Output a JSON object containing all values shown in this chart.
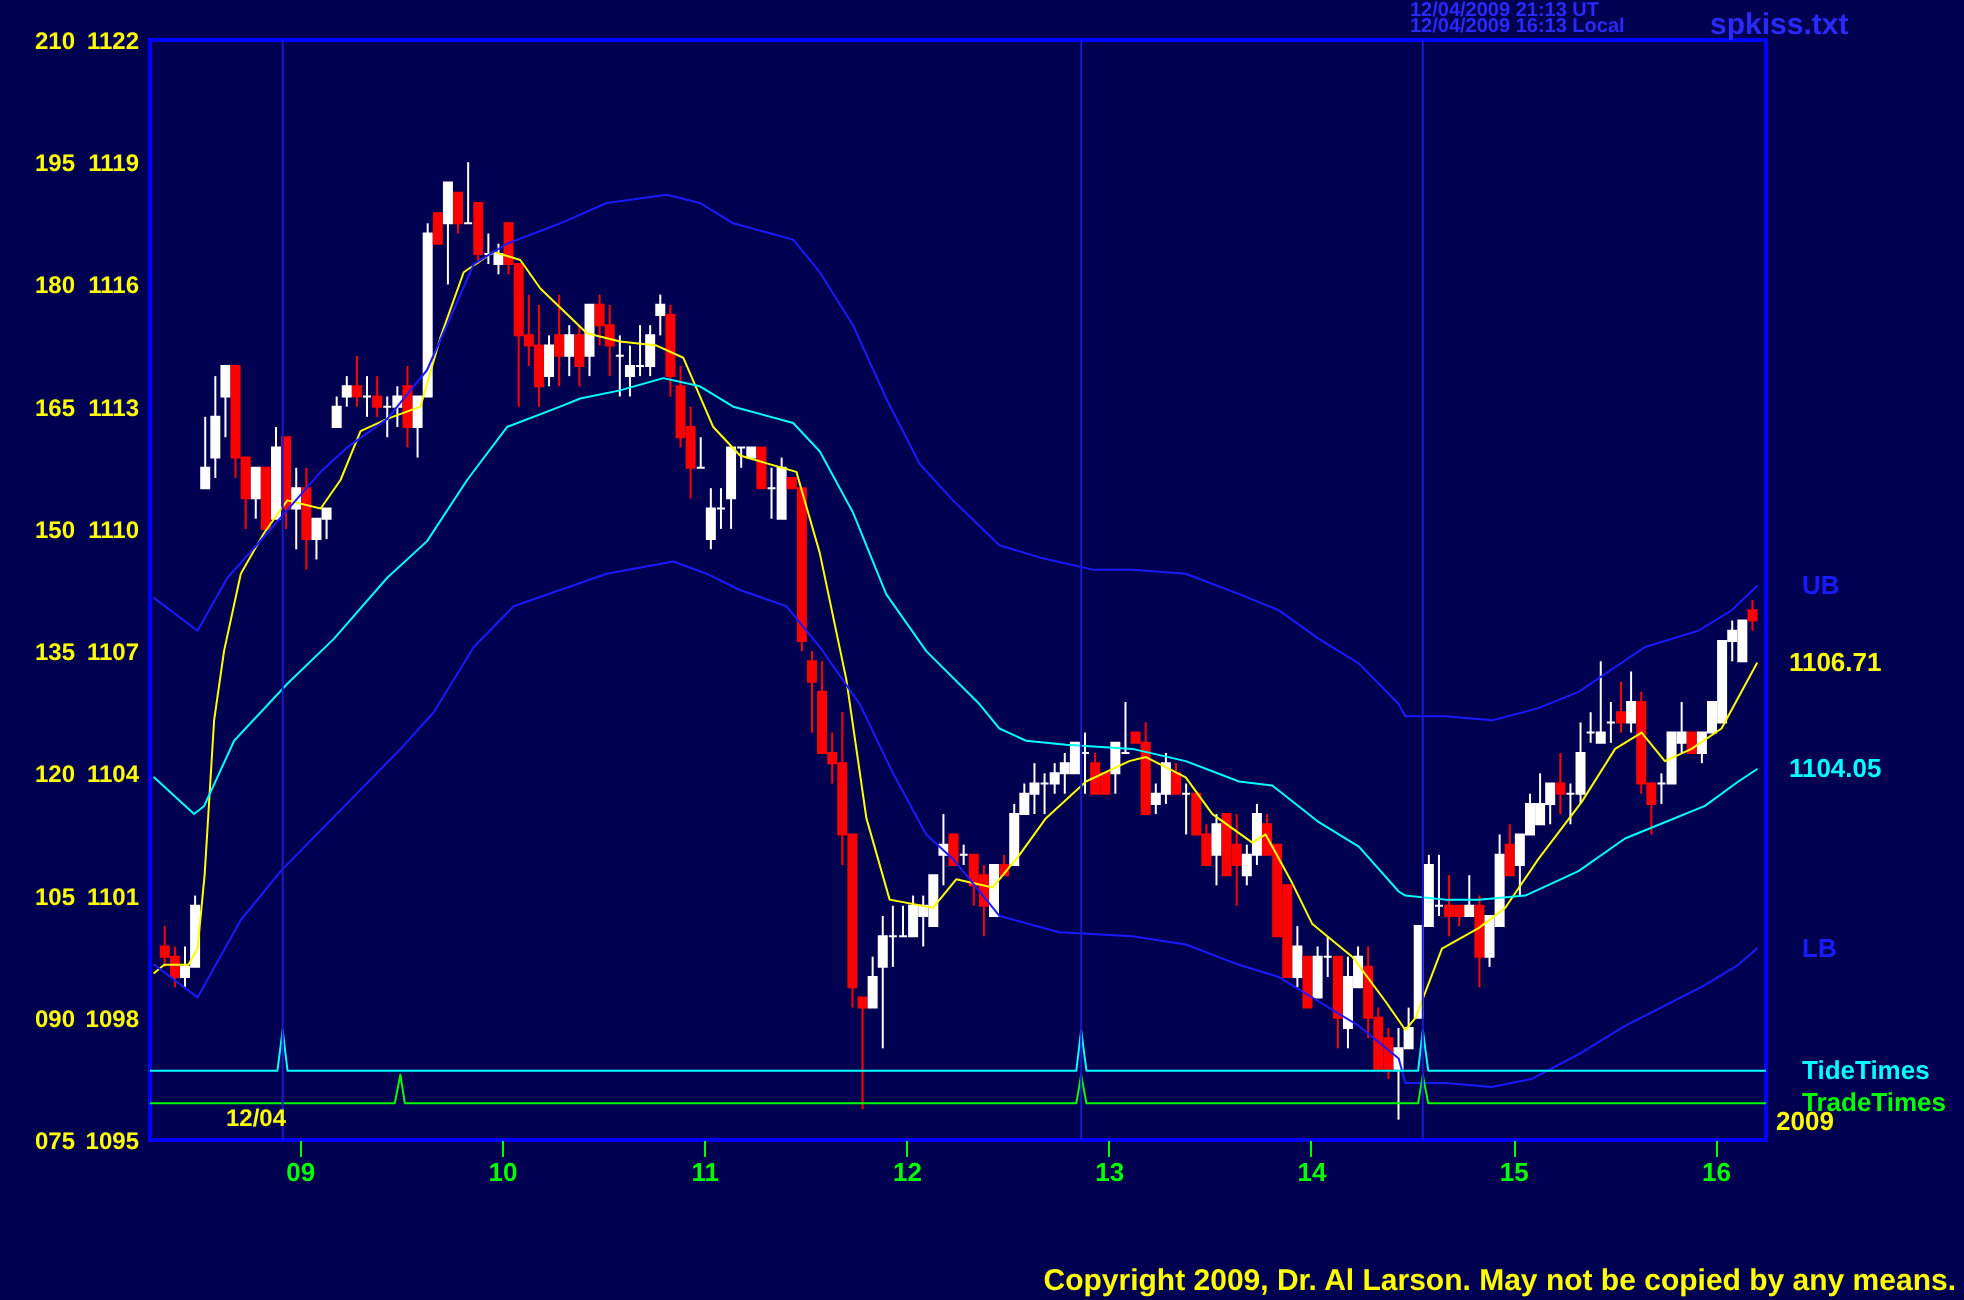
{
  "chart_data": {
    "type": "candlestick",
    "xlim": [
      8.26,
      16.25
    ],
    "xticks": [
      {
        "value": 9,
        "label": "09"
      },
      {
        "value": 10,
        "label": "10"
      },
      {
        "value": 11,
        "label": "11"
      },
      {
        "value": 12,
        "label": "12"
      },
      {
        "value": 13,
        "label": "13"
      },
      {
        "value": 14,
        "label": "14"
      },
      {
        "value": 15,
        "label": "15"
      },
      {
        "value": 16,
        "label": "16"
      }
    ],
    "ylim": [
      1095,
      1122
    ],
    "yticks": [
      1095,
      1098,
      1101,
      1104,
      1107,
      1110,
      1113,
      1116,
      1119,
      1122
    ],
    "y2lim": [
      75,
      210
    ],
    "y2ticks": [
      {
        "value": 75,
        "label": "075"
      },
      {
        "value": 90,
        "label": "090"
      },
      105,
      120,
      135,
      150,
      165,
      180,
      195,
      210
    ],
    "grid": false,
    "marker": "none",
    "line_style": "solid",
    "series": [
      {
        "x": [
          8.333,
          8.383,
          8.433,
          8.483,
          8.533,
          8.583,
          8.633,
          8.683,
          8.733,
          8.783,
          8.833,
          8.883,
          8.933,
          8.983,
          9.033,
          9.083,
          9.133,
          9.183,
          9.233,
          9.283,
          9.333,
          9.383,
          9.433,
          9.483,
          9.533,
          9.583,
          9.633,
          9.683,
          9.733,
          9.783,
          9.833,
          9.883,
          9.933,
          9.983,
          10.033,
          10.083,
          10.133,
          10.183,
          10.233,
          10.283,
          10.333,
          10.383,
          10.433,
          10.483,
          10.533,
          10.583,
          10.633,
          10.683,
          10.733,
          10.783,
          10.833,
          10.883,
          10.933,
          10.983,
          11.033,
          11.083,
          11.133,
          11.183,
          11.233,
          11.283,
          11.333,
          11.383,
          11.433,
          11.483,
          11.533,
          11.583,
          11.633,
          11.683,
          11.733,
          11.783,
          11.833,
          11.883,
          11.933,
          11.983,
          12.033,
          12.083,
          12.133,
          12.183,
          12.233,
          12.283,
          12.333,
          12.383,
          12.433,
          12.483,
          12.533,
          12.583,
          12.633,
          12.683,
          12.733,
          12.783,
          12.833,
          12.883,
          12.933,
          12.983,
          13.033,
          13.083,
          13.133,
          13.183,
          13.233,
          13.283,
          13.333,
          13.383,
          13.433,
          13.483,
          13.533,
          13.583,
          13.633,
          13.683,
          13.733,
          13.783,
          13.833,
          13.883,
          13.933,
          13.983,
          14.033,
          14.083,
          14.133,
          14.183,
          14.233,
          14.283,
          14.333,
          14.383,
          14.433,
          14.483,
          14.533,
          14.583,
          14.633,
          14.683,
          14.733,
          14.783,
          14.833,
          14.883,
          14.933,
          14.983,
          15.033,
          15.083,
          15.133,
          15.183,
          15.233,
          15.283,
          15.333,
          15.383,
          15.433,
          15.483,
          15.533,
          15.583,
          15.633,
          15.683,
          15.733,
          15.783,
          15.833,
          15.883,
          15.933,
          15.983,
          16.033,
          16.083,
          16.133,
          16.183
        ],
        "ohlc": [
          [
            1099.75,
            1100.25,
            1099.25,
            1099.5
          ],
          [
            1099.5,
            1099.75,
            1098.75,
            1099
          ],
          [
            1099,
            1099.75,
            1098.75,
            1099.25
          ],
          [
            1099.25,
            1101,
            1099.25,
            1100.75
          ],
          [
            1111,
            1112.75,
            1111,
            1111.5
          ],
          [
            1111.75,
            1113.75,
            1111.25,
            1112.75
          ],
          [
            1113.25,
            1114,
            1112.25,
            1114
          ],
          [
            1114,
            1114,
            1111.25,
            1111.75
          ],
          [
            1111.75,
            1111.75,
            1110,
            1110.75
          ],
          [
            1110.75,
            1111.5,
            1110.25,
            1111.5
          ],
          [
            1111.5,
            1111.5,
            1110,
            1110
          ],
          [
            1110.25,
            1112.5,
            1110.25,
            1112
          ],
          [
            1112.25,
            1112.25,
            1110,
            1110.5
          ],
          [
            1110.5,
            1111.5,
            1109.5,
            1111
          ],
          [
            1111,
            1111.5,
            1109,
            1109.75
          ],
          [
            1109.75,
            1110.25,
            1109.25,
            1110.25
          ],
          [
            1110.25,
            1110.5,
            1109.75,
            1110.5
          ],
          [
            1112.5,
            1113.25,
            1112.5,
            1113
          ],
          [
            1113.25,
            1113.75,
            1113,
            1113.5
          ],
          [
            1113.5,
            1114.25,
            1113,
            1113.25
          ],
          [
            1113.25,
            1113.75,
            1112.75,
            1113.25
          ],
          [
            1113.25,
            1113.75,
            1112.75,
            1113
          ],
          [
            1113,
            1113.25,
            1112.25,
            1113
          ],
          [
            1113,
            1113.5,
            1112.5,
            1113.25
          ],
          [
            1113.5,
            1114,
            1112,
            1112.5
          ],
          [
            1112.5,
            1113.25,
            1111.75,
            1113.25
          ],
          [
            1113.25,
            1117.5,
            1113.25,
            1117.25
          ],
          [
            1117.75,
            1117.75,
            1117,
            1117
          ],
          [
            1117.5,
            1118.5,
            1116,
            1118.5
          ],
          [
            1118.25,
            1118.25,
            1117.25,
            1117.5
          ],
          [
            1117.5,
            1119,
            1117.5,
            1117.5
          ],
          [
            1118,
            1118,
            1116.5,
            1116.75
          ],
          [
            1116.75,
            1117.25,
            1116.5,
            1116.75
          ],
          [
            1116.5,
            1117,
            1116.25,
            1116.75
          ],
          [
            1117.5,
            1117.5,
            1116.25,
            1116.5
          ],
          [
            1116.5,
            1116.5,
            1113,
            1114.75
          ],
          [
            1114.75,
            1115.75,
            1114,
            1114.5
          ],
          [
            1114.5,
            1115.5,
            1113,
            1113.5
          ],
          [
            1113.75,
            1114.75,
            1113.5,
            1114.5
          ],
          [
            1114.75,
            1115.75,
            1113.5,
            1114.25
          ],
          [
            1114.25,
            1115,
            1113.75,
            1114.75
          ],
          [
            1114.75,
            1115,
            1113.5,
            1114
          ],
          [
            1114.25,
            1115.5,
            1113.75,
            1115.5
          ],
          [
            1115.5,
            1115.75,
            1114.5,
            1115
          ],
          [
            1115,
            1115.5,
            1113.75,
            1114.5
          ],
          [
            1114.25,
            1114.75,
            1113.25,
            1114.25
          ],
          [
            1113.75,
            1114.5,
            1113.25,
            1114
          ],
          [
            1114,
            1115,
            1113.75,
            1114
          ],
          [
            1114,
            1115,
            1113.75,
            1114.75
          ],
          [
            1115.25,
            1115.75,
            1114.75,
            1115.5
          ],
          [
            1115.25,
            1115.5,
            1113.25,
            1113.75
          ],
          [
            1113.5,
            1114,
            1112,
            1112.25
          ],
          [
            1112.5,
            1113,
            1110.75,
            1111.5
          ],
          [
            1111.5,
            1112.25,
            1111.5,
            1111.5
          ],
          [
            1109.75,
            1111,
            1109.5,
            1110.5
          ],
          [
            1110.5,
            1111,
            1110,
            1110.5
          ],
          [
            1110.75,
            1112,
            1110,
            1112
          ],
          [
            1112,
            1112,
            1111.5,
            1112
          ],
          [
            1111.75,
            1112,
            1111.75,
            1112
          ],
          [
            1112,
            1112,
            1111,
            1111
          ],
          [
            1111,
            1111.5,
            1110.25,
            1111
          ],
          [
            1110.25,
            1111.75,
            1110.25,
            1111.5
          ],
          [
            1111.25,
            1111.25,
            1111,
            1111
          ],
          [
            1111,
            1111,
            1107,
            1107.25
          ],
          [
            1106.75,
            1107,
            1105,
            1106.25
          ],
          [
            1106,
            1106.75,
            1104.5,
            1104.5
          ],
          [
            1104.5,
            1105,
            1103.75,
            1104.25
          ],
          [
            1104.25,
            1105.5,
            1101.75,
            1102.5
          ],
          [
            1102.5,
            1102.5,
            1098.25,
            1098.75
          ],
          [
            1098.5,
            1098.5,
            1095.75,
            1098.25
          ],
          [
            1098.25,
            1099.5,
            1098.25,
            1099
          ],
          [
            1099.25,
            1100.5,
            1097.25,
            1100
          ],
          [
            1100,
            1100.75,
            1099.25,
            1100
          ],
          [
            1100,
            1100.75,
            1100,
            1100
          ],
          [
            1100,
            1101,
            1100,
            1100.75
          ],
          [
            1100.5,
            1101,
            1099.75,
            1100.75
          ],
          [
            1100.25,
            1101.5,
            1100.25,
            1101.5
          ],
          [
            1102,
            1103,
            1101.25,
            1102.25
          ],
          [
            1102.5,
            1102.5,
            1101.75,
            1101.75
          ],
          [
            1102,
            1102.25,
            1101.75,
            1102
          ],
          [
            1102,
            1102,
            1100.75,
            1101.25
          ],
          [
            1101.5,
            1101.75,
            1100,
            1100.75
          ],
          [
            1100.5,
            1101.75,
            1100.5,
            1101.75
          ],
          [
            1101.75,
            1102,
            1101.5,
            1101.5
          ],
          [
            1101.75,
            1103.25,
            1101.75,
            1103
          ],
          [
            1103,
            1103.75,
            1103,
            1103.5
          ],
          [
            1103.5,
            1104.25,
            1103,
            1103.75
          ],
          [
            1103.75,
            1104,
            1103,
            1103.75
          ],
          [
            1103.75,
            1104.25,
            1103.5,
            1104
          ],
          [
            1104,
            1104.5,
            1103.5,
            1104.25
          ],
          [
            1104,
            1104.75,
            1104,
            1104.75
          ],
          [
            1104.5,
            1105,
            1103.5,
            1104.5
          ],
          [
            1104.25,
            1104.5,
            1103.5,
            1103.5
          ],
          [
            1104,
            1104,
            1103.5,
            1103.5
          ],
          [
            1104,
            1104.75,
            1103.5,
            1104.75
          ],
          [
            1104.5,
            1105.75,
            1104.5,
            1104.5
          ],
          [
            1105,
            1105,
            1104.75,
            1104.75
          ],
          [
            1104.75,
            1105.25,
            1103,
            1103
          ],
          [
            1103.25,
            1103.75,
            1103,
            1103.5
          ],
          [
            1103.5,
            1104.5,
            1103.25,
            1104.25
          ],
          [
            1104,
            1104.25,
            1103.5,
            1103.5
          ],
          [
            1103.5,
            1103.75,
            1102.5,
            1103.5
          ],
          [
            1103.5,
            1103.5,
            1102.5,
            1102.5
          ],
          [
            1102.5,
            1102.75,
            1101.75,
            1101.75
          ],
          [
            1102,
            1103,
            1101.25,
            1102.75
          ],
          [
            1103,
            1103,
            1101.5,
            1101.5
          ],
          [
            1102.25,
            1103,
            1100.75,
            1101.75
          ],
          [
            1101.5,
            1102.25,
            1101.25,
            1102
          ],
          [
            1102,
            1103.25,
            1101.75,
            1103
          ],
          [
            1102.75,
            1103,
            1102,
            1102
          ],
          [
            1102.25,
            1102.25,
            1100,
            1100
          ],
          [
            1101.25,
            1101.25,
            1099,
            1099
          ],
          [
            1099,
            1100.25,
            1098.75,
            1099.75
          ],
          [
            1099.5,
            1099.5,
            1098.25,
            1098.25
          ],
          [
            1098.5,
            1099.75,
            1098.5,
            1099.5
          ],
          [
            1099.5,
            1100,
            1099,
            1099.5
          ],
          [
            1099.5,
            1099.5,
            1097.25,
            1098
          ],
          [
            1097.75,
            1099.5,
            1097.25,
            1099
          ],
          [
            1098.75,
            1099.75,
            1098.75,
            1099.5
          ],
          [
            1099.25,
            1099.75,
            1097.5,
            1098
          ],
          [
            1098,
            1098.25,
            1096.75,
            1096.75
          ],
          [
            1097.5,
            1097.75,
            1096.5,
            1096.75
          ],
          [
            1096.75,
            1097.75,
            1095.5,
            1097.25
          ],
          [
            1097.25,
            1098.25,
            1097.25,
            1097.75
          ],
          [
            1098,
            1100.25,
            1098,
            1100.25
          ],
          [
            1100.25,
            1102,
            1100.25,
            1101.75
          ],
          [
            1100.75,
            1102,
            1100.5,
            1100.75
          ],
          [
            1100.75,
            1101.5,
            1100,
            1100.5
          ],
          [
            1100.75,
            1100.75,
            1100.25,
            1100.5
          ],
          [
            1100.5,
            1101.5,
            1100.5,
            1100.75
          ],
          [
            1100.75,
            1101,
            1098.75,
            1099.5
          ],
          [
            1099.5,
            1100.5,
            1099.25,
            1100.5
          ],
          [
            1100.25,
            1102.5,
            1100.25,
            1102
          ],
          [
            1102.25,
            1102.75,
            1101.5,
            1101.5
          ],
          [
            1101.75,
            1102.5,
            1101,
            1102.5
          ],
          [
            1102.5,
            1103.5,
            1102.5,
            1103.25
          ],
          [
            1102.75,
            1104,
            1102.75,
            1103.25
          ],
          [
            1103.25,
            1103.75,
            1102.75,
            1103.75
          ],
          [
            1103.75,
            1104.5,
            1103,
            1103.5
          ],
          [
            1103.5,
            1103.75,
            1102.75,
            1103.5
          ],
          [
            1103.5,
            1105.25,
            1103.25,
            1104.5
          ],
          [
            1105,
            1105.5,
            1104.75,
            1105
          ],
          [
            1104.75,
            1106.75,
            1104.75,
            1105
          ],
          [
            1105.25,
            1105.75,
            1104.75,
            1105.25
          ],
          [
            1105.5,
            1106.25,
            1105,
            1105.25
          ],
          [
            1105.25,
            1106.5,
            1105,
            1105.75
          ],
          [
            1105.75,
            1106,
            1103.5,
            1103.75
          ],
          [
            1103.75,
            1103.75,
            1102.5,
            1103.25
          ],
          [
            1103.75,
            1104,
            1103.25,
            1103.75
          ],
          [
            1103.75,
            1105,
            1103.75,
            1105
          ],
          [
            1104.75,
            1105.75,
            1104.5,
            1105
          ],
          [
            1105,
            1105,
            1104.5,
            1104.5
          ],
          [
            1104.5,
            1105,
            1104.25,
            1105
          ],
          [
            1105,
            1105.75,
            1105,
            1105.75
          ],
          [
            1105.25,
            1107.25,
            1105.25,
            1107.25
          ],
          [
            1107.25,
            1107.75,
            1106.75,
            1107.5
          ],
          [
            1106.75,
            1107.75,
            1106.75,
            1107.75
          ],
          [
            1108,
            1108.25,
            1107.5,
            1107.75
          ]
        ],
        "colors": [
          "#ff0000",
          "#ff0000",
          "#ffffff",
          "#ffffff",
          "#ffffff",
          "#ffffff",
          "#ffffff",
          "#ff0000",
          "#ff0000",
          "#ffffff",
          "#ff0000",
          "#ffffff",
          "#ff0000",
          "#ffffff",
          "#ff0000",
          "#ffffff",
          "#ffffff",
          "#ffffff",
          "#ffffff",
          "#ff0000",
          "#ffffff",
          "#ff0000",
          "#ffffff",
          "#ffffff",
          "#ff0000",
          "#ffffff",
          "#ffffff",
          "#ff0000",
          "#ffffff",
          "#ff0000",
          "#ffffff",
          "#ff0000",
          "#ffffff",
          "#ffffff",
          "#ff0000",
          "#ff0000",
          "#ff0000",
          "#ff0000",
          "#ffffff",
          "#ff0000",
          "#ffffff",
          "#ff0000",
          "#ffffff",
          "#ff0000",
          "#ff0000",
          "#ffffff",
          "#ffffff",
          "#ffffff",
          "#ffffff",
          "#ffffff",
          "#ff0000",
          "#ff0000",
          "#ff0000",
          "#ffffff",
          "#ffffff",
          "#ffffff",
          "#ffffff",
          "#ffffff",
          "#ffffff",
          "#ff0000",
          "#ffffff",
          "#ffffff",
          "#ff0000",
          "#ff0000",
          "#ff0000",
          "#ff0000",
          "#ff0000",
          "#ff0000",
          "#ff0000",
          "#ff0000",
          "#ffffff",
          "#ffffff",
          "#ffffff",
          "#ffffff",
          "#ffffff",
          "#ffffff",
          "#ffffff",
          "#ffffff",
          "#ff0000",
          "#ffffff",
          "#ff0000",
          "#ff0000",
          "#ffffff",
          "#ff0000",
          "#ffffff",
          "#ffffff",
          "#ffffff",
          "#ffffff",
          "#ffffff",
          "#ffffff",
          "#ffffff",
          "#ffffff",
          "#ff0000",
          "#ff0000",
          "#ffffff",
          "#ffffff",
          "#ff0000",
          "#ff0000",
          "#ffffff",
          "#ffffff",
          "#ff0000",
          "#ffffff",
          "#ff0000",
          "#ff0000",
          "#ffffff",
          "#ff0000",
          "#ff0000",
          "#ffffff",
          "#ffffff",
          "#ff0000",
          "#ff0000",
          "#ff0000",
          "#ffffff",
          "#ff0000",
          "#ffffff",
          "#ffffff",
          "#ff0000",
          "#ffffff",
          "#ffffff",
          "#ff0000",
          "#ff0000",
          "#ff0000",
          "#ffffff",
          "#ffffff",
          "#ffffff",
          "#ffffff",
          "#ffffff",
          "#ff0000",
          "#ff0000",
          "#ffffff",
          "#ff0000",
          "#ffffff",
          "#ffffff",
          "#ff0000",
          "#ffffff",
          "#ffffff",
          "#ffffff",
          "#ffffff",
          "#ff0000",
          "#ffffff",
          "#ffffff",
          "#ffffff",
          "#ffffff",
          "#ffffff",
          "#ff0000",
          "#ffffff",
          "#ff0000",
          "#ff0000",
          "#ffffff",
          "#ffffff",
          "#ffffff",
          "#ff0000",
          "#ffffff",
          "#ffffff",
          "#ffffff",
          "#ffffff",
          "#ffffff",
          "#ff0000"
        ]
      },
      {
        "type": "line",
        "color": "#ffff00",
        "x": [
          8.281,
          8.33,
          8.45,
          8.495,
          8.53,
          8.577,
          8.626,
          8.709,
          8.824,
          8.939,
          9.104,
          9.202,
          9.301,
          9.433,
          9.597,
          9.696,
          9.811,
          9.959,
          10.091,
          10.19,
          10.42,
          10.584,
          10.765,
          10.897,
          11.045,
          11.177,
          11.456,
          11.572,
          11.703,
          11.802,
          11.917,
          12.131,
          12.246,
          12.427,
          12.559,
          12.69,
          12.888,
          13.102,
          13.184,
          13.381,
          13.513,
          13.71,
          13.776,
          13.908,
          14.007,
          14.204,
          14.369,
          14.467,
          14.517,
          14.648,
          14.829,
          14.961,
          15.125,
          15.339,
          15.504,
          15.635,
          15.75,
          15.882,
          16.03,
          16.205
        ],
        "values": [
          1099.1,
          1099.3,
          1099.3,
          1099.7,
          1101.5,
          1105.3,
          1107.0,
          1108.9,
          1109.9,
          1110.7,
          1110.5,
          1111.2,
          1112.4,
          1112.7,
          1113.0,
          1114.7,
          1116.3,
          1116.8,
          1116.6,
          1115.9,
          1114.8,
          1114.6,
          1114.5,
          1114.2,
          1112.5,
          1111.8,
          1111.4,
          1109.4,
          1106.3,
          1102.9,
          1100.9,
          1100.7,
          1101.4,
          1101.2,
          1102.0,
          1102.9,
          1103.8,
          1104.3,
          1104.4,
          1103.9,
          1103.0,
          1102.3,
          1102.5,
          1101.3,
          1100.3,
          1099.5,
          1098.4,
          1097.7,
          1098.0,
          1099.7,
          1100.2,
          1100.7,
          1101.9,
          1103.3,
          1104.6,
          1105.0,
          1104.3,
          1104.6,
          1105.1,
          1106.7
        ]
      },
      {
        "type": "line",
        "color": "#00ffff",
        "x": [
          8.281,
          8.478,
          8.528,
          8.676,
          8.939,
          9.169,
          9.433,
          9.63,
          9.828,
          10.025,
          10.288,
          10.387,
          10.584,
          10.798,
          10.979,
          11.144,
          11.44,
          11.572,
          11.736,
          11.9,
          12.098,
          12.361,
          12.46,
          12.592,
          12.789,
          13.118,
          13.381,
          13.645,
          13.809,
          14.039,
          14.237,
          14.434,
          14.467,
          14.665,
          14.829,
          15.06,
          15.323,
          15.553,
          15.75,
          15.948,
          16.113,
          16.205
        ],
        "values": [
          1103.9,
          1103.0,
          1103.2,
          1104.8,
          1106.2,
          1107.3,
          1108.8,
          1109.7,
          1111.2,
          1112.5,
          1113.0,
          1113.2,
          1113.4,
          1113.7,
          1113.5,
          1113.0,
          1112.6,
          1111.9,
          1110.4,
          1108.4,
          1107.0,
          1105.7,
          1105.1,
          1104.8,
          1104.7,
          1104.6,
          1104.3,
          1103.8,
          1103.7,
          1102.8,
          1102.2,
          1101.1,
          1101.0,
          1100.9,
          1100.9,
          1101.0,
          1101.6,
          1102.4,
          1102.8,
          1103.2,
          1103.8,
          1104.1
        ]
      },
      {
        "type": "line",
        "name": "UB",
        "color": "#1a1aff",
        "x": [
          8.281,
          8.495,
          8.643,
          8.84,
          9.104,
          9.235,
          9.433,
          9.63,
          9.861,
          10.025,
          10.288,
          10.518,
          10.815,
          10.979,
          11.144,
          11.44,
          11.572,
          11.736,
          11.9,
          12.065,
          12.23,
          12.46,
          12.658,
          12.921,
          13.118,
          13.381,
          13.645,
          13.842,
          14.039,
          14.237,
          14.434,
          14.467,
          14.665,
          14.895,
          15.125,
          15.323,
          15.652,
          15.915,
          16.08,
          16.205
        ],
        "values": [
          1108.3,
          1107.5,
          1108.8,
          1109.9,
          1111.4,
          1112.0,
          1112.7,
          1113.9,
          1116.5,
          1117.0,
          1117.5,
          1118.0,
          1118.2,
          1118.0,
          1117.5,
          1117.1,
          1116.3,
          1115.0,
          1113.2,
          1111.6,
          1110.7,
          1109.6,
          1109.3,
          1109.0,
          1109.0,
          1108.9,
          1108.4,
          1108.0,
          1107.3,
          1106.7,
          1105.7,
          1105.4,
          1105.4,
          1105.3,
          1105.6,
          1106.0,
          1107.1,
          1107.5,
          1108.0,
          1108.6
        ]
      },
      {
        "type": "line",
        "name": "LB",
        "color": "#1a1aff",
        "x": [
          8.281,
          8.495,
          8.709,
          8.906,
          9.104,
          9.499,
          9.663,
          9.861,
          10.058,
          10.288,
          10.518,
          10.848,
          11.012,
          11.177,
          11.407,
          11.572,
          11.769,
          11.934,
          12.098,
          12.23,
          12.46,
          12.756,
          13.118,
          13.381,
          13.645,
          13.842,
          14.039,
          14.237,
          14.434,
          14.467,
          14.665,
          14.895,
          15.092,
          15.323,
          15.553,
          15.75,
          15.948,
          16.113,
          16.205
        ],
        "values": [
          1099.3,
          1098.5,
          1100.4,
          1101.6,
          1102.6,
          1104.6,
          1105.5,
          1107.1,
          1108.1,
          1108.5,
          1108.9,
          1109.2,
          1108.9,
          1108.5,
          1108.1,
          1107.1,
          1105.7,
          1104.0,
          1102.5,
          1101.9,
          1100.5,
          1100.1,
          1100.0,
          1099.8,
          1099.3,
          1099.0,
          1098.4,
          1097.8,
          1097.0,
          1096.4,
          1096.4,
          1096.3,
          1096.5,
          1097.1,
          1097.8,
          1098.3,
          1098.8,
          1099.3,
          1099.7
        ]
      },
      {
        "type": "line",
        "name": "TideTimes",
        "color": "#00ffff",
        "x": [
          8.26,
          8.89,
          8.916,
          8.94,
          12.84,
          12.864,
          12.89,
          14.53,
          14.553,
          14.58,
          16.25
        ],
        "values": [
          1096.7,
          1096.7,
          1097.7,
          1096.7,
          1096.7,
          1097.7,
          1096.7,
          1096.7,
          1097.7,
          1096.7,
          1096.7
        ]
      },
      {
        "type": "line",
        "name": "TradeTimes",
        "color": "#00ff00",
        "x": [
          8.26,
          9.47,
          9.498,
          9.52,
          12.84,
          12.864,
          12.89,
          14.53,
          14.553,
          14.58,
          16.25
        ],
        "values": [
          1095.9,
          1095.9,
          1096.6,
          1095.9,
          1095.9,
          1096.6,
          1095.9,
          1095.9,
          1096.6,
          1095.9,
          1095.9
        ]
      }
    ],
    "ref_lines": [
      {
        "axis": "x",
        "value": 8.916,
        "color": "#1a1acd"
      },
      {
        "axis": "x",
        "value": 12.864,
        "color": "#1a1acd"
      },
      {
        "axis": "x",
        "value": 14.553,
        "color": "#1a1acd"
      }
    ],
    "annotations": [
      "12/04/2009 21:13 UT",
      "12/04/2009 16:13 Local",
      "spkiss.txt",
      "12/04",
      "2009",
      "Copyright 2009, Dr. Al Larson. May not be copied by any means.",
      {
        "text": "1106.71",
        "x": 16.205,
        "y": 1106.7
      },
      {
        "text": "1104.05",
        "x": 16.205,
        "y": 1104.1
      }
    ]
  }
}
